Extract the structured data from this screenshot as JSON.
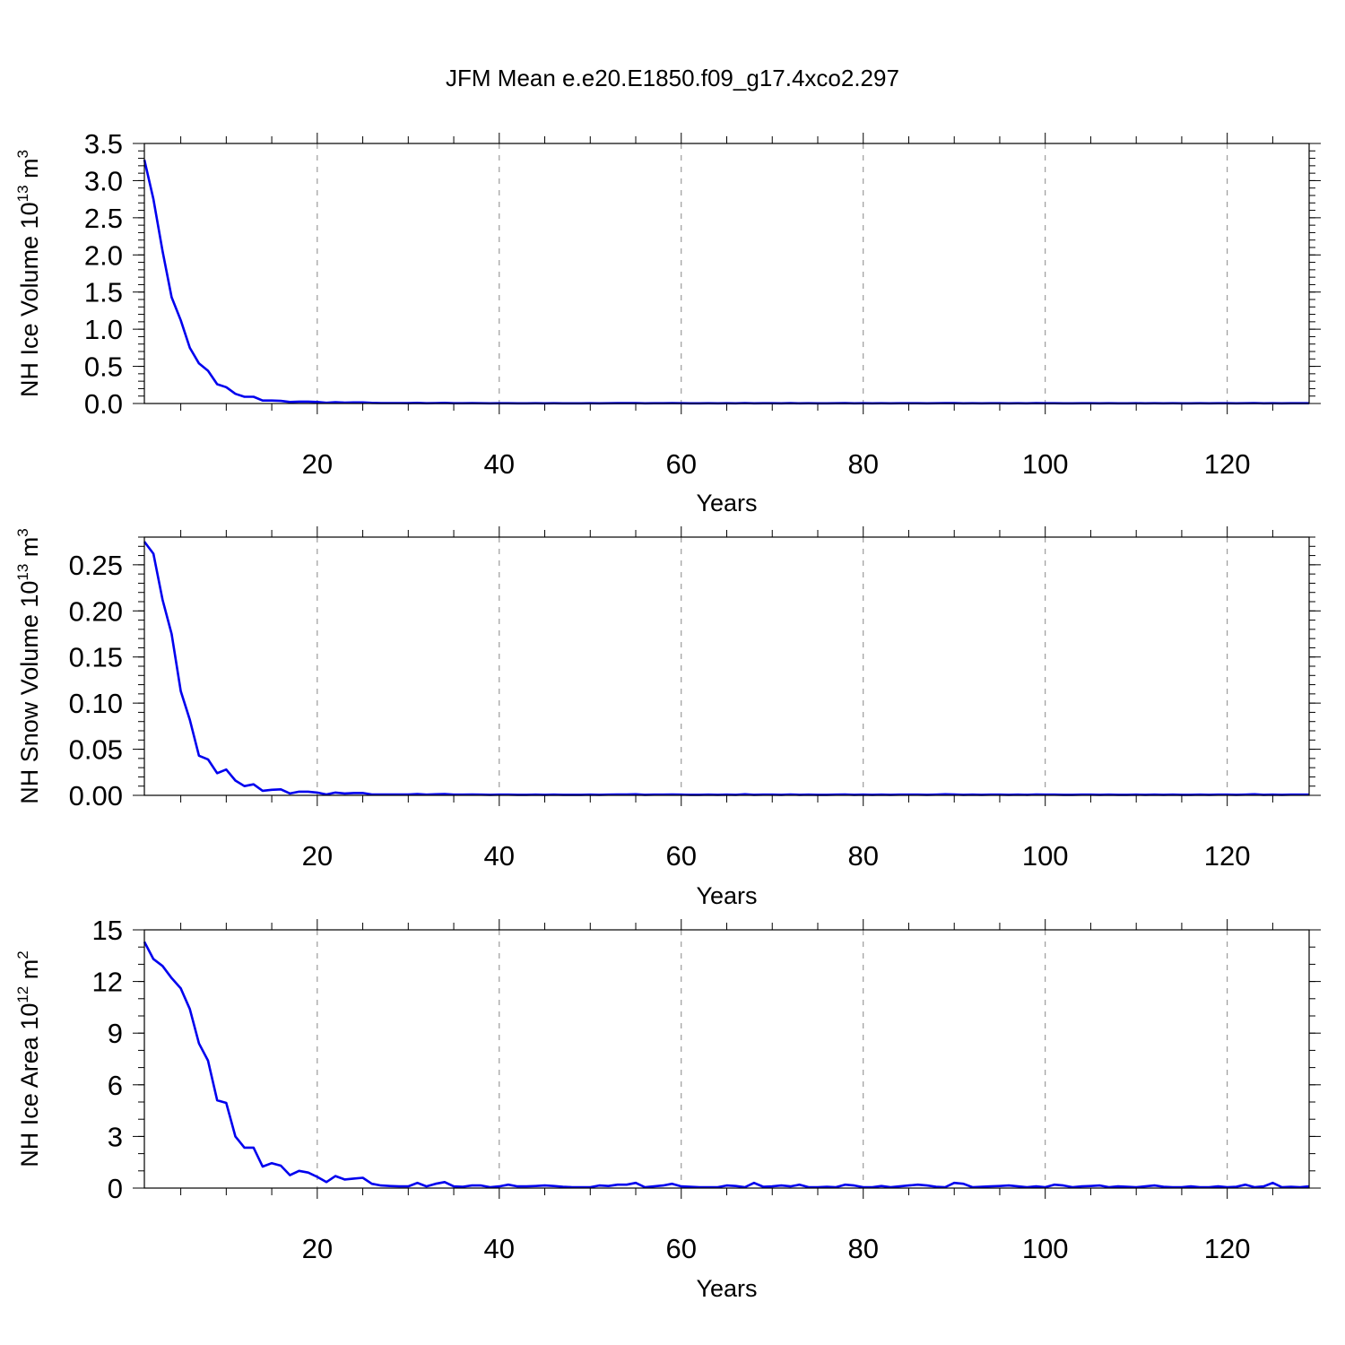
{
  "figure_title": "JFM Mean e.e20.E1850.f09_g17.4xco2.297",
  "colors": {
    "line": "#0000ee",
    "frame": "#000000",
    "grid": "#888888"
  },
  "chart_data": [
    {
      "type": "line",
      "title": "",
      "xlabel": "Years",
      "ylabel": {
        "text": "NH Ice Volume 10",
        "exp": "13",
        "unit": " m",
        "unit_exp": "3"
      },
      "xlim": [
        1,
        129
      ],
      "ylim": [
        0,
        3.5
      ],
      "xticks": [
        20,
        40,
        60,
        80,
        100,
        120
      ],
      "yticks": [
        0,
        0.5,
        1.0,
        1.5,
        2.0,
        2.5,
        3.0,
        3.5
      ],
      "ytick_labels": [
        "0.0",
        "0.5",
        "1.0",
        "1.5",
        "2.0",
        "2.5",
        "3.0",
        "3.5"
      ],
      "ytick_minor_step": 0.1,
      "grid": "x-dashed",
      "series": [
        {
          "x_start": 1,
          "values": [
            3.28,
            2.75,
            2.05,
            1.43,
            1.12,
            0.75,
            0.54,
            0.44,
            0.26,
            0.22,
            0.13,
            0.09,
            0.09,
            0.04,
            0.04,
            0.035,
            0.02,
            0.025,
            0.025,
            0.02,
            0.01,
            0.018,
            0.012,
            0.015,
            0.015,
            0.008,
            0.006,
            0.006,
            0.006,
            0.005,
            0.008,
            0.004,
            0.006,
            0.008,
            0.004,
            0.004,
            0.005,
            0.004,
            0.003,
            0.004,
            0.004,
            0.003,
            0.003,
            0.004,
            0.003,
            0.004,
            0.003,
            0.003,
            0.003,
            0.004,
            0.003,
            0.004,
            0.005,
            0.005,
            0.006,
            0.003,
            0.004,
            0.004,
            0.005,
            0.004,
            0.003,
            0.003,
            0.004,
            0.003,
            0.004,
            0.003,
            0.006,
            0.003,
            0.004,
            0.004,
            0.003,
            0.005,
            0.003,
            0.004,
            0.003,
            0.003,
            0.004,
            0.005,
            0.003,
            0.004,
            0.003,
            0.004,
            0.003,
            0.004,
            0.004,
            0.004,
            0.003,
            0.004,
            0.006,
            0.005,
            0.003,
            0.004,
            0.003,
            0.004,
            0.004,
            0.003,
            0.004,
            0.003,
            0.005,
            0.004,
            0.004,
            0.003,
            0.003,
            0.004,
            0.004,
            0.003,
            0.004,
            0.003,
            0.003,
            0.004,
            0.003,
            0.004,
            0.003,
            0.004,
            0.003,
            0.003,
            0.004,
            0.003,
            0.004,
            0.004,
            0.003,
            0.004,
            0.006,
            0.003,
            0.004,
            0.003,
            0.004,
            0.004,
            0.004
          ]
        }
      ]
    },
    {
      "type": "line",
      "title": "",
      "xlabel": "Years",
      "ylabel": {
        "text": "NH Snow Volume 10",
        "exp": "13",
        "unit": " m",
        "unit_exp": "3"
      },
      "xlim": [
        1,
        129
      ],
      "ylim": [
        0,
        0.28
      ],
      "xticks": [
        20,
        40,
        60,
        80,
        100,
        120
      ],
      "yticks": [
        0,
        0.05,
        0.1,
        0.15,
        0.2,
        0.25
      ],
      "ytick_labels": [
        "0.00",
        "0.05",
        "0.10",
        "0.15",
        "0.20",
        "0.25"
      ],
      "ytick_minor_step": 0.01,
      "grid": "x-dashed",
      "series": [
        {
          "x_start": 1,
          "values": [
            0.275,
            0.262,
            0.212,
            0.175,
            0.113,
            0.082,
            0.043,
            0.039,
            0.024,
            0.028,
            0.016,
            0.01,
            0.012,
            0.005,
            0.006,
            0.0065,
            0.002,
            0.004,
            0.004,
            0.003,
            0.001,
            0.003,
            0.002,
            0.0025,
            0.0025,
            0.001,
            0.001,
            0.001,
            0.001,
            0.001,
            0.0015,
            0.0008,
            0.0012,
            0.0015,
            0.0008,
            0.0008,
            0.001,
            0.0008,
            0.0006,
            0.0008,
            0.0008,
            0.0006,
            0.0006,
            0.0008,
            0.0006,
            0.0008,
            0.0006,
            0.0006,
            0.0006,
            0.0008,
            0.0006,
            0.0008,
            0.001,
            0.001,
            0.0012,
            0.0006,
            0.0008,
            0.0008,
            0.001,
            0.0008,
            0.0006,
            0.0006,
            0.0008,
            0.0006,
            0.0008,
            0.0006,
            0.0012,
            0.0006,
            0.0008,
            0.0008,
            0.0006,
            0.001,
            0.0006,
            0.0008,
            0.0006,
            0.0006,
            0.0008,
            0.001,
            0.0006,
            0.0008,
            0.0006,
            0.0008,
            0.0006,
            0.0008,
            0.0008,
            0.0008,
            0.0006,
            0.0008,
            0.0012,
            0.001,
            0.0006,
            0.0008,
            0.0006,
            0.0008,
            0.0008,
            0.0006,
            0.0008,
            0.0006,
            0.001,
            0.0008,
            0.0008,
            0.0006,
            0.0006,
            0.0008,
            0.0008,
            0.0006,
            0.0008,
            0.0006,
            0.0006,
            0.0008,
            0.0006,
            0.0008,
            0.0006,
            0.0008,
            0.0006,
            0.0006,
            0.0008,
            0.0006,
            0.0008,
            0.0008,
            0.0006,
            0.0008,
            0.0012,
            0.0006,
            0.0008,
            0.0006,
            0.0008,
            0.0008,
            0.0008
          ]
        }
      ]
    },
    {
      "type": "line",
      "title": "",
      "xlabel": "Years",
      "ylabel": {
        "text": "NH Ice Area 10",
        "exp": "12",
        "unit": " m",
        "unit_exp": "2"
      },
      "xlim": [
        1,
        129
      ],
      "ylim": [
        0,
        15
      ],
      "xticks": [
        20,
        40,
        60,
        80,
        100,
        120
      ],
      "yticks": [
        0,
        3,
        6,
        9,
        12,
        15
      ],
      "ytick_labels": [
        "0",
        "3",
        "6",
        "9",
        "12",
        "15"
      ],
      "ytick_minor_step": 1,
      "grid": "x-dashed",
      "series": [
        {
          "x_start": 1,
          "values": [
            14.3,
            13.3,
            12.9,
            12.2,
            11.6,
            10.4,
            8.4,
            7.4,
            5.1,
            4.95,
            3.0,
            2.35,
            2.35,
            1.25,
            1.45,
            1.3,
            0.75,
            1.0,
            0.9,
            0.65,
            0.35,
            0.7,
            0.5,
            0.55,
            0.6,
            0.25,
            0.15,
            0.12,
            0.1,
            0.1,
            0.3,
            0.1,
            0.25,
            0.35,
            0.1,
            0.08,
            0.15,
            0.15,
            0.05,
            0.1,
            0.2,
            0.1,
            0.1,
            0.12,
            0.15,
            0.12,
            0.08,
            0.05,
            0.05,
            0.05,
            0.15,
            0.12,
            0.2,
            0.2,
            0.3,
            0.05,
            0.1,
            0.15,
            0.25,
            0.1,
            0.08,
            0.05,
            0.05,
            0.05,
            0.15,
            0.12,
            0.05,
            0.3,
            0.08,
            0.1,
            0.15,
            0.1,
            0.2,
            0.05,
            0.05,
            0.08,
            0.05,
            0.2,
            0.15,
            0.05,
            0.05,
            0.12,
            0.05,
            0.1,
            0.15,
            0.2,
            0.15,
            0.08,
            0.05,
            0.3,
            0.25,
            0.05,
            0.08,
            0.1,
            0.12,
            0.15,
            0.1,
            0.05,
            0.1,
            0.05,
            0.2,
            0.15,
            0.05,
            0.1,
            0.12,
            0.15,
            0.05,
            0.1,
            0.08,
            0.05,
            0.1,
            0.15,
            0.08,
            0.05,
            0.05,
            0.1,
            0.05,
            0.05,
            0.1,
            0.05,
            0.08,
            0.2,
            0.05,
            0.1,
            0.3,
            0.05,
            0.08,
            0.05,
            0.1
          ]
        }
      ]
    }
  ]
}
